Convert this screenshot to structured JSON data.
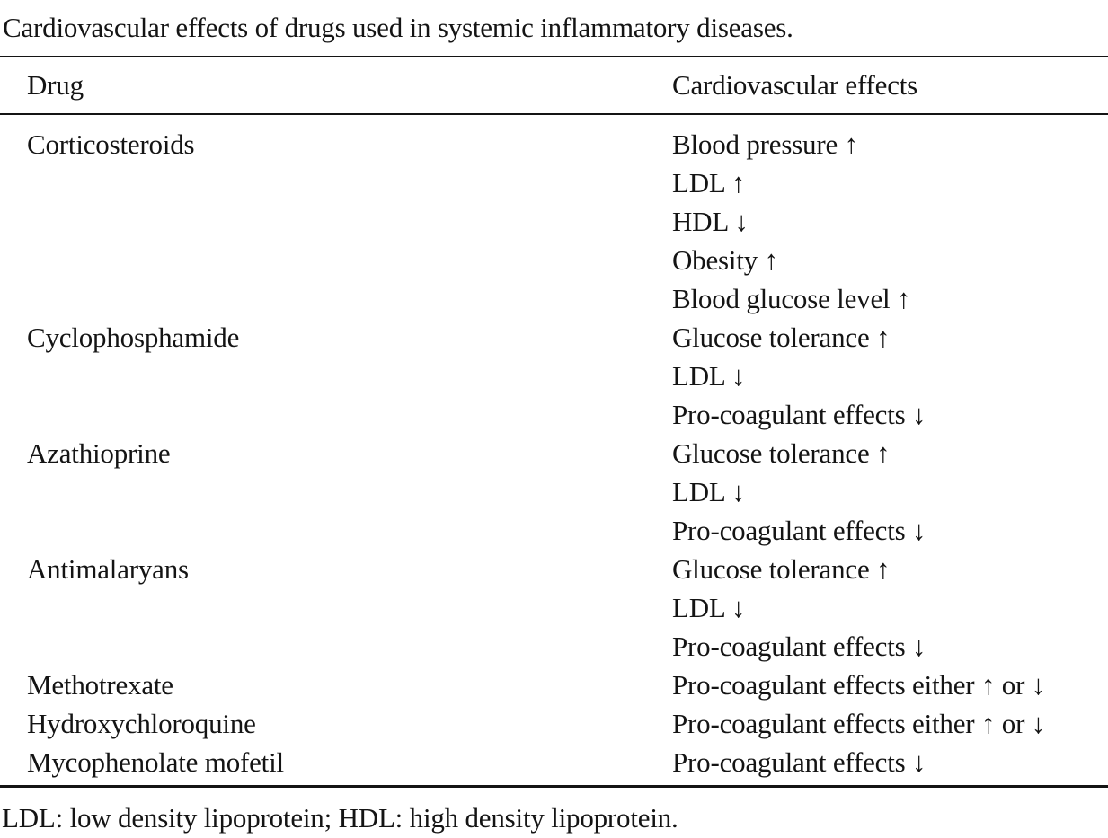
{
  "table": {
    "caption": "Cardiovascular effects of drugs used in systemic inflammatory diseases.",
    "columns": {
      "drug": "Drug",
      "effects": "Cardiovascular effects"
    },
    "rows": [
      {
        "drug": "Corticosteroids",
        "effects": [
          "Blood pressure ↑",
          "LDL ↑",
          "HDL ↓",
          "Obesity ↑",
          "Blood glucose level ↑"
        ]
      },
      {
        "drug": "Cyclophosphamide",
        "effects": [
          "Glucose tolerance ↑",
          "LDL ↓",
          "Pro-coagulant effects ↓"
        ]
      },
      {
        "drug": "Azathioprine",
        "effects": [
          "Glucose tolerance ↑",
          "LDL ↓",
          "Pro-coagulant effects ↓"
        ]
      },
      {
        "drug": "Antimalaryans",
        "effects": [
          "Glucose tolerance ↑",
          "LDL ↓",
          "Pro-coagulant effects ↓"
        ]
      },
      {
        "drug": "Methotrexate",
        "effects": [
          "Pro-coagulant effects either ↑ or ↓"
        ]
      },
      {
        "drug": "Hydroxychloroquine",
        "effects": [
          "Pro-coagulant effects either ↑ or ↓"
        ]
      },
      {
        "drug": "Mycophenolate mofetil",
        "effects": [
          "Pro-coagulant effects ↓"
        ]
      }
    ],
    "footnote": "LDL: low density lipoprotein; HDL: high density lipoprotein.",
    "colors": {
      "text": "#141414",
      "rule": "#141414",
      "background": "#ffffff"
    }
  }
}
